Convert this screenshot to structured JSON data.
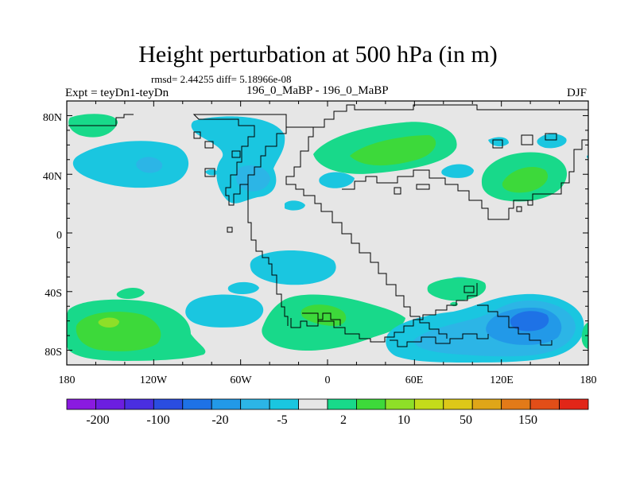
{
  "plot": {
    "title": "Height perturbation at 500 hPa (in m)",
    "stats": "rmsd= 2.44255 diff= 5.18966e-08",
    "experiment": "Expt = teyDn1-teyDn",
    "subtitle": "196_0_MaBP - 196_0_MaBP",
    "season": "DJF"
  },
  "axes": {
    "lat_labels": [
      "80N",
      "40N",
      "0",
      "40S",
      "80S"
    ],
    "lon_labels": [
      "180",
      "120W",
      "60W",
      "0",
      "60E",
      "120E",
      "180"
    ],
    "lat_range": [
      -90,
      90
    ],
    "lon_range": [
      -180,
      180
    ]
  },
  "colorbar": {
    "labels": [
      "-200",
      "-100",
      "-20",
      "-5",
      "2",
      "10",
      "50",
      "150"
    ],
    "colors": [
      "#8a1ae0",
      "#6c1ee0",
      "#4a2ee0",
      "#2a4de0",
      "#1e72e6",
      "#2299e8",
      "#2cb5e6",
      "#1ac6e0",
      "#e6e6e6",
      "#18d98a",
      "#3dd93a",
      "#8edf28",
      "#c4dc1a",
      "#ddc818",
      "#dfa618",
      "#e27a18",
      "#e24e18",
      "#e22618"
    ]
  },
  "colors": {
    "background": "#e6e6e6",
    "neg_light": "#1ac6e0",
    "neg_mid": "#2cb5e6",
    "neg_strong": "#2299e8",
    "pos_light": "#18d98a",
    "pos_mid": "#3dd93a",
    "pos_strong": "#8edf28"
  }
}
